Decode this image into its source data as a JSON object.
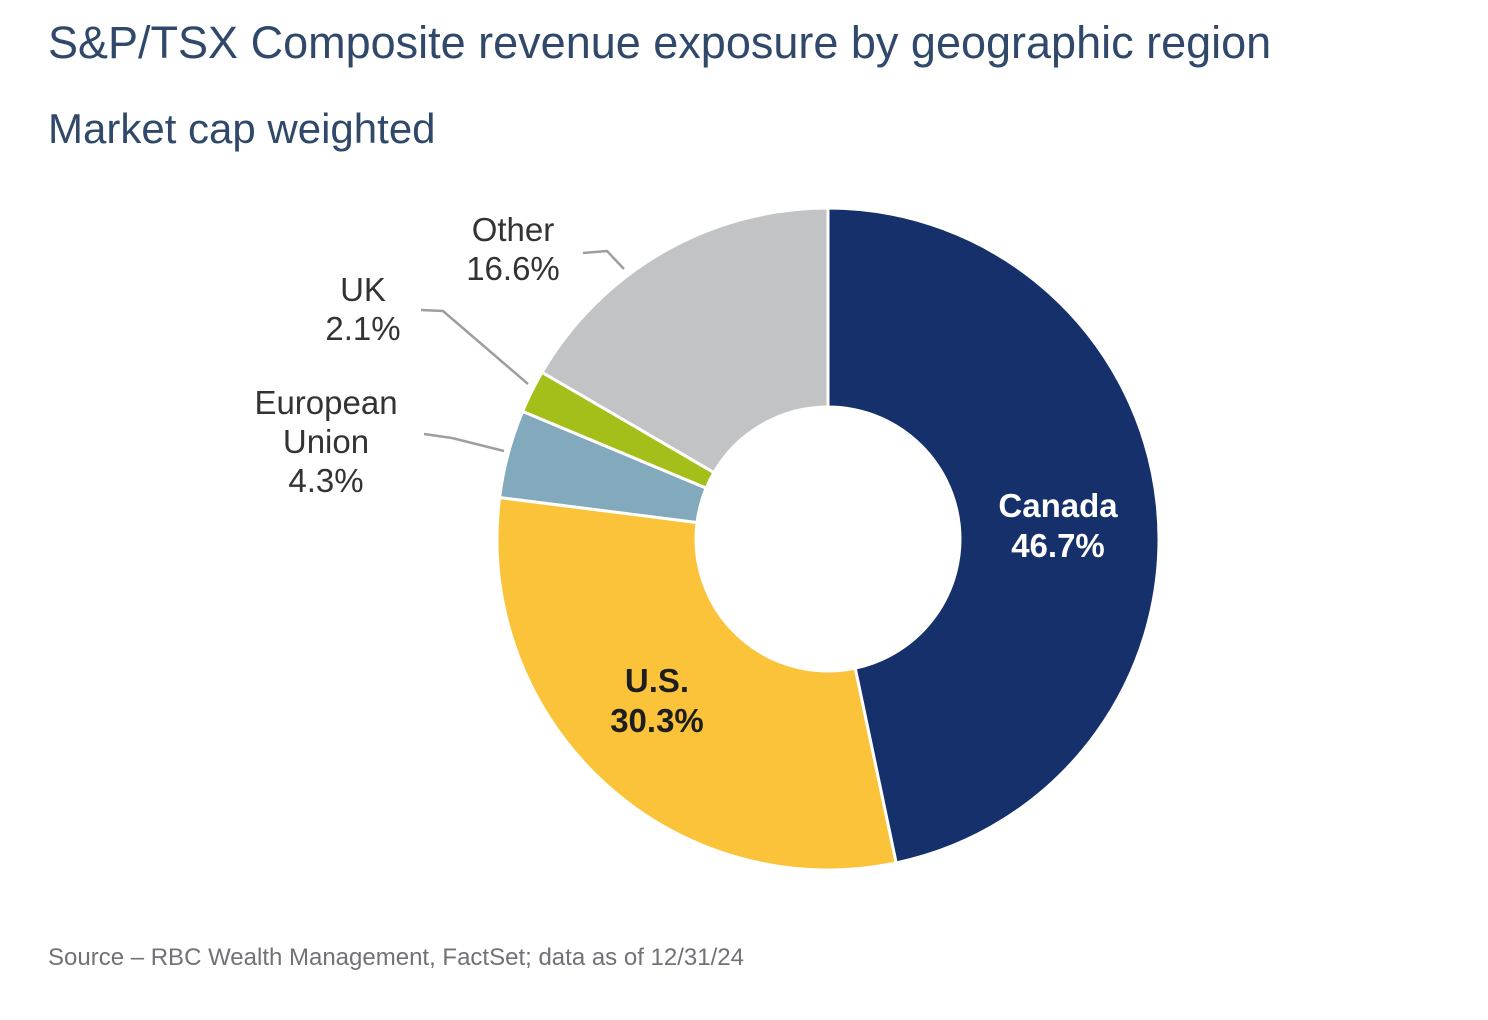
{
  "header": {
    "title": "S&P/TSX Composite revenue exposure by geographic region",
    "subtitle": "Market cap weighted"
  },
  "footer": {
    "source": "Source – RBC Wealth Management, FactSet; data as of 12/31/24"
  },
  "colors": {
    "title_text": "#30496B",
    "outside_label_text": "#333333",
    "canada_label_text": "#FFFFFF",
    "us_label_text": "#1E1E1E",
    "source_text": "#707277",
    "leader_line": "#9E9E9E",
    "slice_separator": "#FFFFFF"
  },
  "chart_data": {
    "type": "pie",
    "variant": "donut",
    "title": "S&P/TSX Composite revenue exposure by geographic region",
    "subtitle": "Market cap weighted",
    "start_angle_deg": 0,
    "direction": "clockwise",
    "total": 100.0,
    "legend": "none",
    "segments": [
      {
        "label": "Canada",
        "value": 46.7,
        "value_label": "46.7%",
        "color": "#16306B",
        "label_placement": "inside",
        "label_color": "#FFFFFF"
      },
      {
        "label": "U.S.",
        "value": 30.3,
        "value_label": "30.3%",
        "color": "#FBC339",
        "label_placement": "inside",
        "label_color": "#1E1E1E"
      },
      {
        "label": "European Union",
        "value": 4.3,
        "value_label": "4.3%",
        "color": "#82A9BC",
        "label_placement": "outside",
        "label_color": "#333333"
      },
      {
        "label": "UK",
        "value": 2.1,
        "value_label": "2.1%",
        "color": "#A5BF1A",
        "label_placement": "outside",
        "label_color": "#333333"
      },
      {
        "label": "Other",
        "value": 16.6,
        "value_label": "16.6%",
        "color": "#C2C3C5",
        "label_placement": "outside",
        "label_color": "#333333"
      }
    ]
  }
}
